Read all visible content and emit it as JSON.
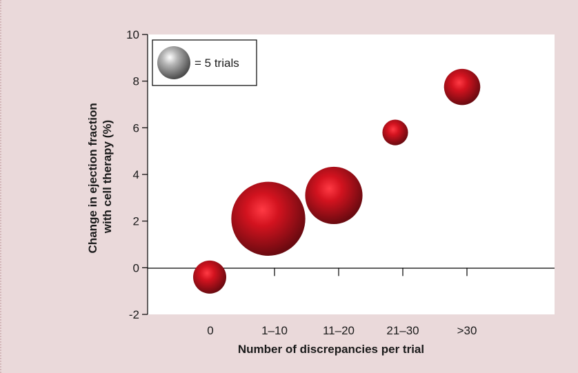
{
  "chart_data": {
    "type": "scatter",
    "bubble": true,
    "xlabel": "Number of discrepancies per trial",
    "ylabel_lines": [
      "Change in ejection fraction",
      "with cell therapy (%)"
    ],
    "categories": [
      "0",
      "1–10",
      "11–20",
      "21–30",
      ">30"
    ],
    "ylim": [
      -2,
      10
    ],
    "yticks": [
      -2,
      0,
      2,
      4,
      6,
      8,
      10
    ],
    "points": [
      {
        "category": "0",
        "y": -0.4,
        "trials": 5
      },
      {
        "category": "1–10",
        "y": 2.1,
        "trials": 25
      },
      {
        "category": "11–20",
        "y": 3.1,
        "trials": 15
      },
      {
        "category": "21–30",
        "y": 5.8,
        "trials": 3
      },
      {
        "category": ">30",
        "y": 7.75,
        "trials": 6
      }
    ],
    "legend": {
      "text": "= 5 trials",
      "trials": 5,
      "placement": "top-left"
    },
    "colors": {
      "bubble": "#c0141e",
      "bubble_dark": "#6a0a10",
      "legend_bubble": "#8c8c8c",
      "plot_bg": "#ffffff",
      "page_bg": "#ead9da"
    }
  }
}
